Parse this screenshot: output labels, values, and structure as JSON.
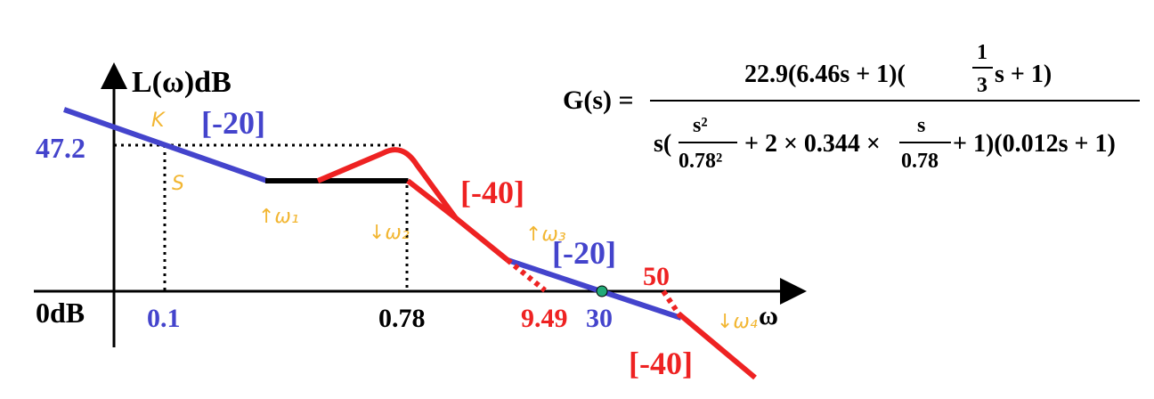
{
  "diagram": {
    "y_axis_label": "L(ω)dB",
    "x_axis_label": "ω",
    "zero_db_label": "0dB",
    "gain_label": "47.2",
    "slope_labels": {
      "low_freq": "[-20]",
      "mid": "[-40]",
      "crossover": "[-20]",
      "high": "[-40]"
    },
    "freq_labels": {
      "f1": "0.1",
      "f2": "0.78",
      "f3": "9.49",
      "f4": "30",
      "f5": "50"
    },
    "handwritten": {
      "k": "K",
      "s": "S",
      "w1": "↑ω₁",
      "w2": "↓ω₂",
      "w3": "↑ω₃",
      "w4": "↓ω₄"
    }
  },
  "formula": {
    "lhs": "G(s) =",
    "numerator_a": "22.9(6.46s + 1)(",
    "numerator_frac_num": "1",
    "numerator_frac_den": "3",
    "numerator_b": "s + 1)",
    "den_s_open": "s(",
    "den_frac1_num": "s²",
    "den_frac1_den": "0.78²",
    "den_mid": "+ 2 × 0.344 ×",
    "den_frac2_num": "s",
    "den_frac2_den": "0.78",
    "den_tail": "+ 1)(0.012s + 1)"
  },
  "colors": {
    "blue": "#4444cc",
    "red": "#ee2222",
    "black": "#000000",
    "handwriting": "#f2b632",
    "crossover_dot": "#22aa77"
  }
}
